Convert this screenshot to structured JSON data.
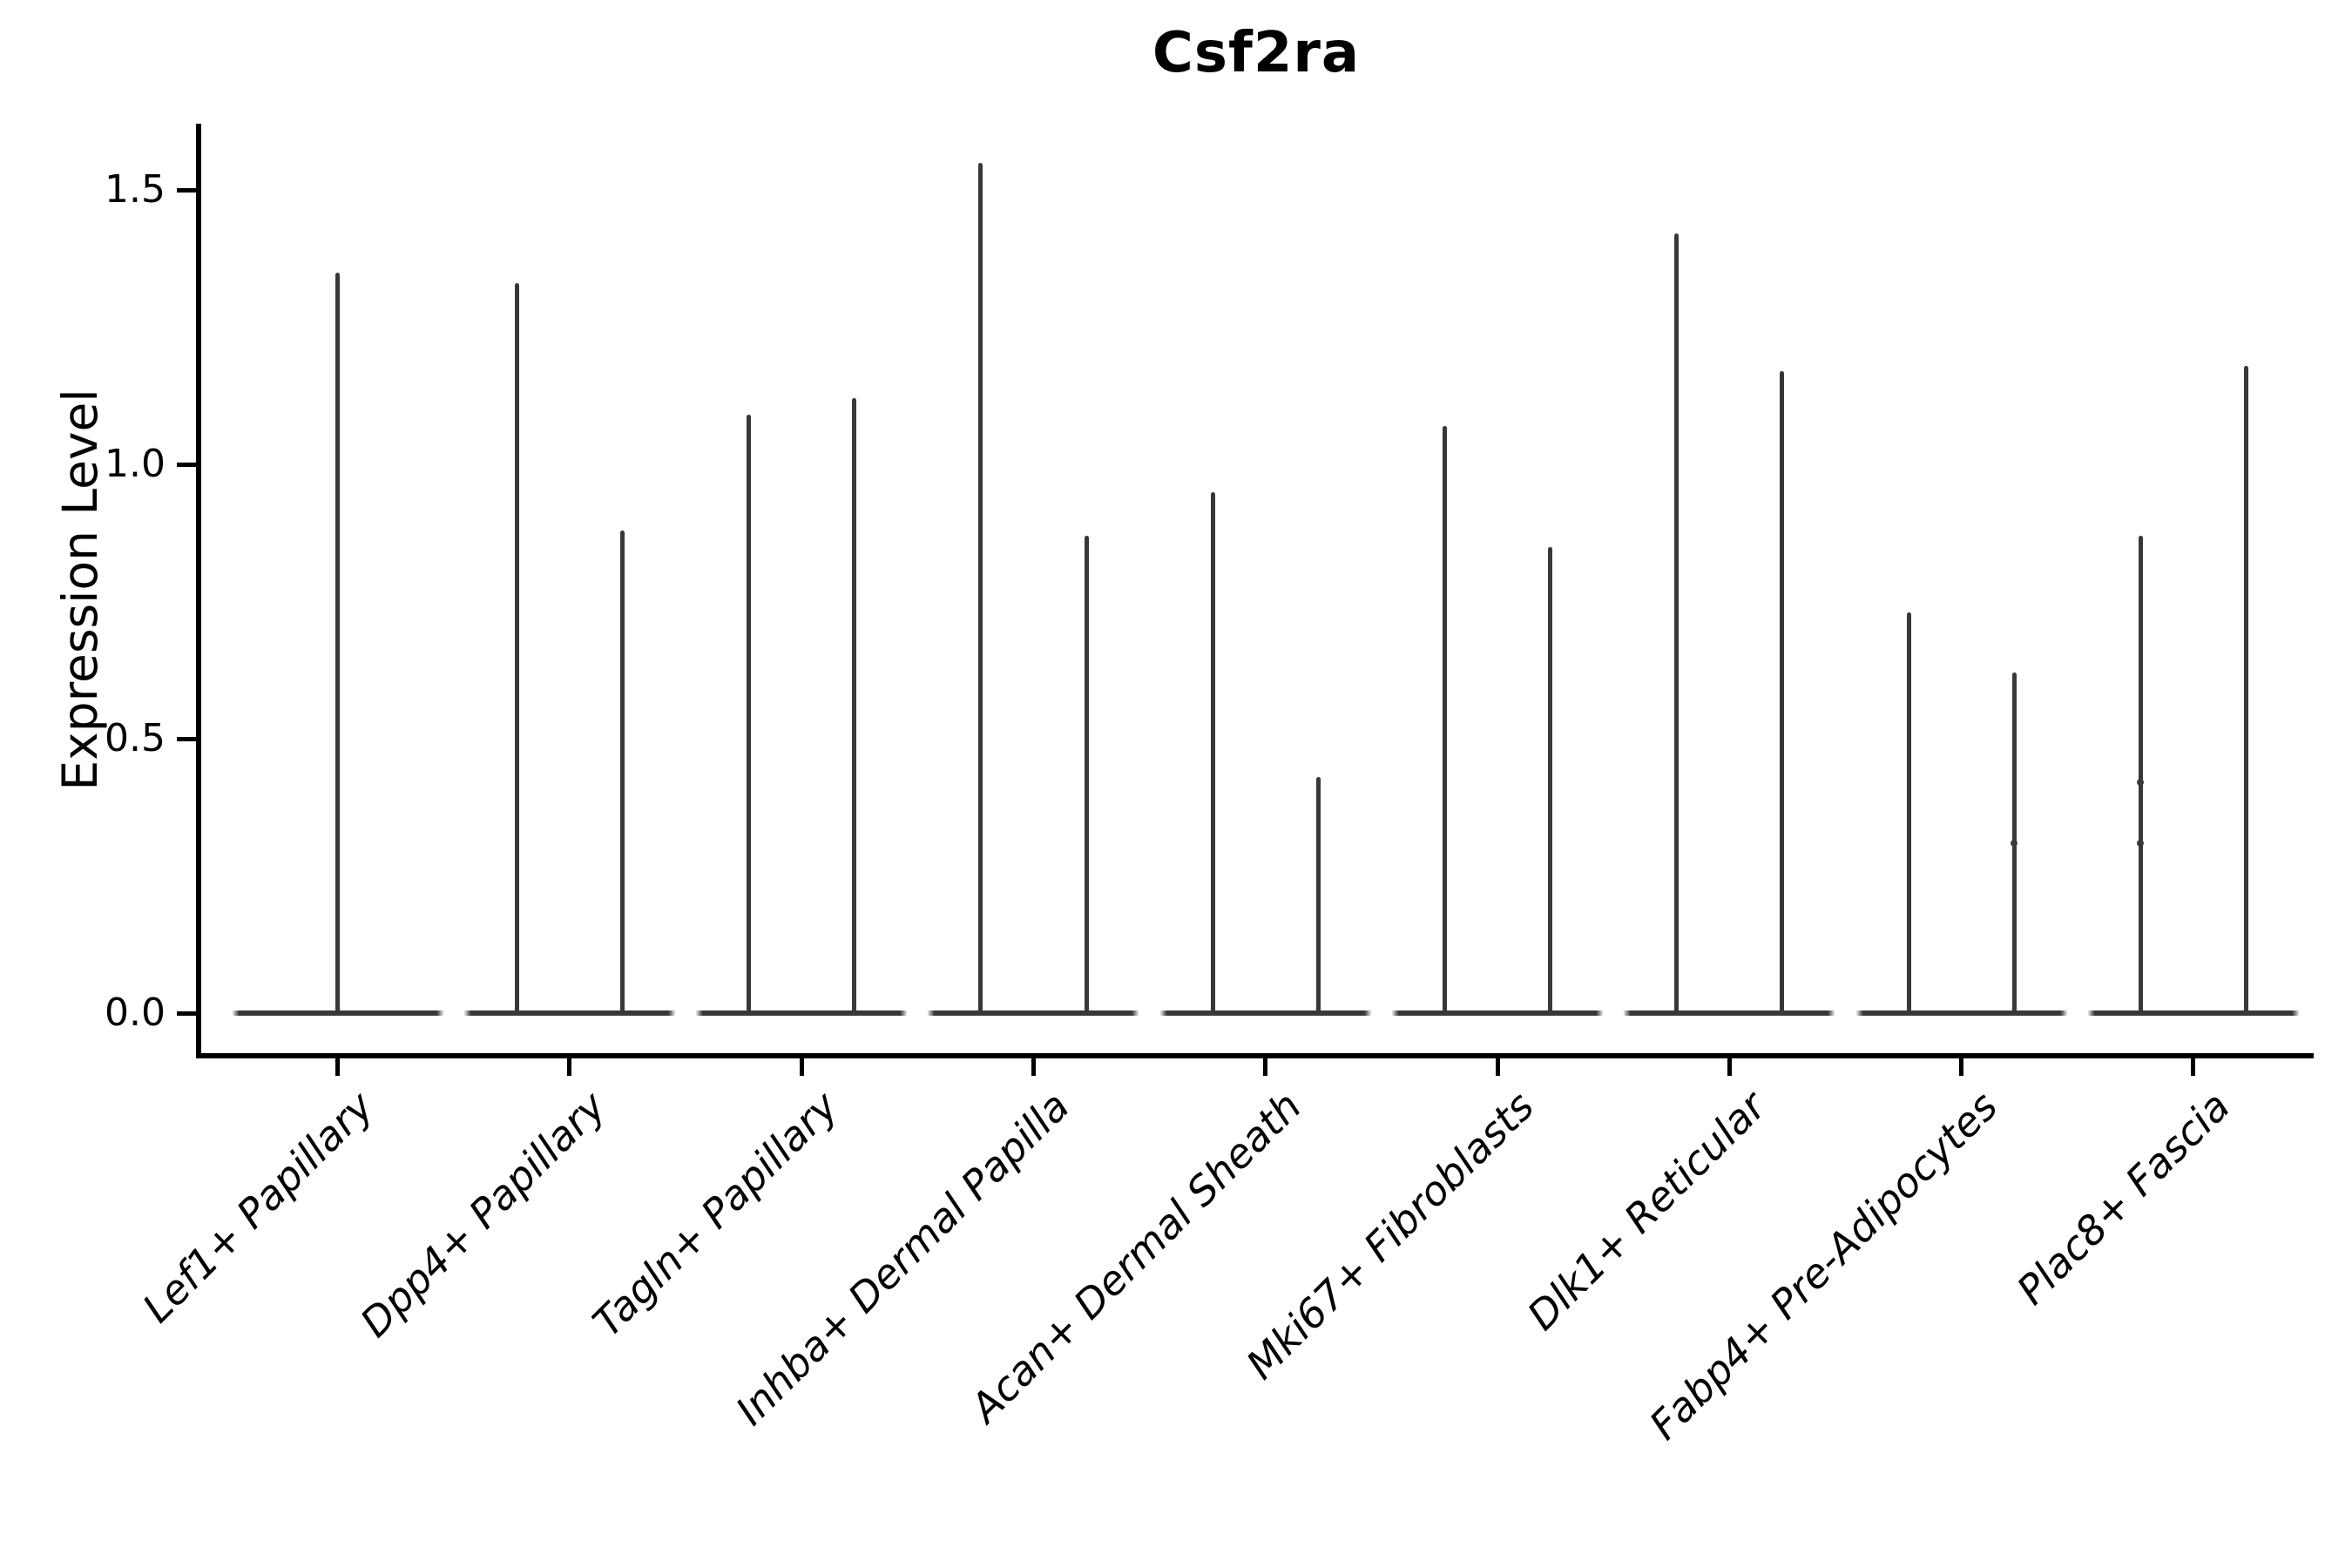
{
  "title": "Csf2ra",
  "y_axis": {
    "label": "Expression Level",
    "ticks": [
      {
        "label": "0.0",
        "value": 0.0
      },
      {
        "label": "0.5",
        "value": 0.5
      },
      {
        "label": "1.0",
        "value": 1.0
      },
      {
        "label": "1.5",
        "value": 1.5
      }
    ]
  },
  "x_axis": {
    "categories": [
      "Lef1+ Papillary",
      "Dpp4+ Papillary",
      "Tagln+ Papillary",
      "Inhba+ Dermal Papilla",
      "Acan+ Dermal Sheath",
      "Mki67+ Fibroblasts",
      "Dlk1+ Reticular",
      "Fabp4+ Pre-Adipocytes",
      "Plac8+ Fascia"
    ]
  },
  "colors": {
    "violin": "#383838",
    "axis": "#000000",
    "background": "#ffffff",
    "text": "#000000"
  },
  "chart_data": {
    "type": "violin",
    "title": "Csf2ra",
    "xlabel": "",
    "ylabel": "Expression Level",
    "ylim": [
      0,
      1.62
    ],
    "yticks": [
      0.0,
      0.5,
      1.0,
      1.5
    ],
    "grid": false,
    "legend": "none",
    "categories": [
      "Lef1+ Papillary",
      "Dpp4+ Papillary",
      "Tagln+ Papillary",
      "Inhba+ Dermal Papilla",
      "Acan+ Dermal Sheath",
      "Mki67+ Fibroblasts",
      "Dlk1+ Reticular",
      "Fabp4+ Pre-Adipocytes",
      "Plac8+ Fascia"
    ],
    "violins": [
      {
        "category": "Lef1+ Papillary",
        "spike_maxima": [
          1.35
        ]
      },
      {
        "category": "Dpp4+ Papillary",
        "spike_maxima": [
          1.33,
          0.88
        ]
      },
      {
        "category": "Tagln+ Papillary",
        "spike_maxima": [
          1.09,
          1.12
        ]
      },
      {
        "category": "Inhba+ Dermal Papilla",
        "spike_maxima": [
          1.55,
          0.87
        ]
      },
      {
        "category": "Acan+ Dermal Sheath",
        "spike_maxima": [
          0.95,
          0.43
        ]
      },
      {
        "category": "Mki67+ Fibroblasts",
        "spike_maxima": [
          1.07,
          0.85
        ]
      },
      {
        "category": "Dlk1+ Reticular",
        "spike_maxima": [
          1.42,
          1.17
        ]
      },
      {
        "category": "Fabp4+ Pre-Adipocytes",
        "spike_maxima": [
          0.73,
          0.62
        ]
      },
      {
        "category": "Plac8+ Fascia",
        "spike_maxima": [
          0.87,
          1.18
        ]
      }
    ],
    "points": [
      {
        "category_index": 7,
        "violin_index": 1,
        "value": 0.31
      },
      {
        "category_index": 8,
        "violin_index": 0,
        "value": 0.42
      },
      {
        "category_index": 8,
        "violin_index": 0,
        "value": 0.31
      }
    ],
    "distribution_shape": "mass concentrated at 0 (flat wide base), thin spike up to each maximum"
  }
}
